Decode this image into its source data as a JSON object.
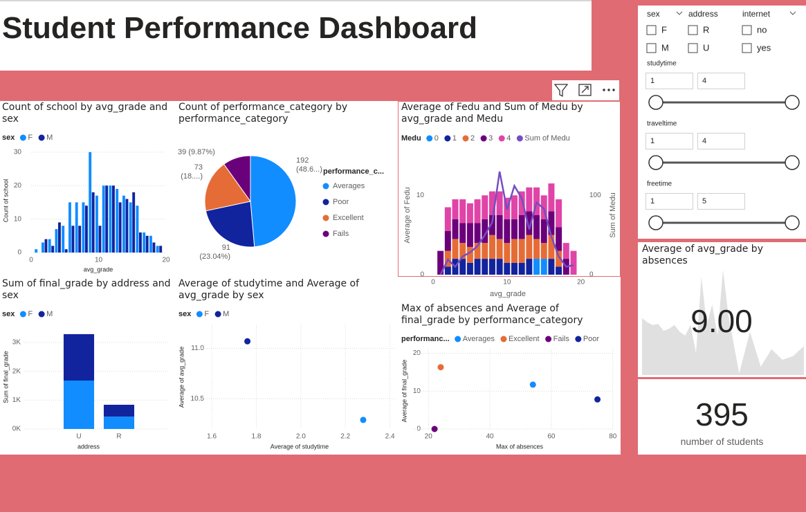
{
  "header": {
    "title": "Student Performance Dashboard"
  },
  "slicers": {
    "checkbox_groups": [
      {
        "title": "sex",
        "options": [
          "F",
          "M"
        ]
      },
      {
        "title": "address",
        "options": [
          "R",
          "U"
        ]
      },
      {
        "title": "internet",
        "options": [
          "no",
          "yes"
        ]
      }
    ],
    "ranges": [
      {
        "title": "studytime",
        "min": 1,
        "max": 4
      },
      {
        "title": "traveltime",
        "min": 1,
        "max": 4
      },
      {
        "title": "freetime",
        "min": 1,
        "max": 5
      }
    ]
  },
  "card": {
    "value": 395,
    "label": "number of students"
  },
  "chart_data": [
    {
      "type": "bar",
      "title": "Count of school by avg_grade and sex",
      "legend_title": "sex",
      "x_label": "avg_grade",
      "y_label": "Count of school",
      "x": [
        1,
        2,
        3,
        4,
        5,
        6,
        7,
        8,
        9,
        10,
        11,
        12,
        13,
        14,
        15,
        16,
        17,
        18,
        19
      ],
      "series": [
        {
          "name": "F",
          "color": "#118DFF",
          "values": [
            1,
            3,
            4,
            7,
            8,
            15,
            15,
            15,
            30,
            17,
            20,
            20,
            19,
            17,
            15,
            14,
            6,
            5,
            2
          ]
        },
        {
          "name": "M",
          "color": "#12239E",
          "values": [
            0,
            4,
            2,
            9,
            1,
            8,
            8,
            14,
            18,
            8,
            20,
            20,
            15,
            16,
            18,
            6,
            5,
            3,
            2
          ]
        }
      ],
      "xlim": [
        0,
        20
      ],
      "xticks": [
        0,
        10,
        20
      ],
      "ylim": [
        0,
        31
      ],
      "yticks": [
        0,
        10,
        20,
        30
      ],
      "grid": true
    },
    {
      "type": "pie",
      "title": "Count of performance_category by performance_category",
      "legend_title": "performance_c...",
      "categories": [
        "Averages",
        "Poor",
        "Excellent",
        "Fails"
      ],
      "values": [
        192,
        91,
        73,
        39
      ],
      "value_labels": [
        "192 (48.6...)",
        "91 (23.04%)",
        "73 (18....)",
        "39 (9.87%)"
      ],
      "colors": [
        "#118DFF",
        "#12239E",
        "#E66C37",
        "#6B007B"
      ]
    },
    {
      "type": "bar_line",
      "title": "Average of Fedu and Sum of Medu by avg_grade and Medu",
      "legend_title": "Medu",
      "x_label": "avg_grade",
      "y_label": "Average of Fedu",
      "y2_label": "Sum of Medu",
      "x": [
        1,
        2,
        3,
        4,
        5,
        6,
        7,
        8,
        9,
        10,
        11,
        12,
        13,
        14,
        15,
        16,
        17,
        18,
        19
      ],
      "series": [
        {
          "name": "0",
          "color": "#118DFF",
          "values": [
            null,
            null,
            null,
            null,
            null,
            null,
            null,
            null,
            null,
            null,
            null,
            null,
            null,
            2,
            2,
            null,
            null,
            null,
            null
          ]
        },
        {
          "name": "1",
          "color": "#12239E",
          "values": [
            null,
            1,
            2,
            2,
            1.5,
            2,
            2,
            2,
            2,
            1.5,
            1.5,
            1.5,
            2,
            null,
            null,
            2,
            1,
            null,
            null
          ]
        },
        {
          "name": "2",
          "color": "#E66C37",
          "values": [
            null,
            2,
            2.5,
            2,
            2,
            2,
            2,
            3,
            2.5,
            2.5,
            3,
            3,
            3,
            2.5,
            2,
            3,
            2,
            null,
            null
          ]
        },
        {
          "name": "3",
          "color": "#6B007B",
          "values": [
            3,
            2.5,
            2.5,
            2.5,
            3,
            2.5,
            3,
            2.5,
            3,
            3,
            2.5,
            3,
            3,
            3,
            3,
            3,
            3,
            2,
            null
          ]
        },
        {
          "name": "4",
          "color": "#E044A7",
          "values": [
            null,
            3,
            2.5,
            3,
            2.5,
            3,
            3,
            3,
            3,
            2.7,
            3,
            3,
            3,
            3.5,
            3,
            3.5,
            3.5,
            2,
            3
          ]
        },
        {
          "name": "Sum of Medu",
          "color": "#744EC2",
          "axis": "y2",
          "values": [
            0,
            19,
            10,
            23,
            28,
            36,
            50,
            66,
            130,
            82,
            112,
            96,
            57,
            91,
            83,
            48,
            23,
            10,
            12
          ]
        }
      ],
      "xlim": [
        0,
        20.5
      ],
      "xticks": [
        0,
        10,
        20
      ],
      "ylim": [
        0,
        15
      ],
      "yticks": [
        0,
        10
      ],
      "y2lim": [
        0,
        150
      ],
      "y2ticks": [
        0,
        100
      ]
    },
    {
      "type": "stacked_bar",
      "title": "Sum of final_grade by address and sex",
      "legend_title": "sex",
      "x_label": "address",
      "y_label": "Sum of final_grade",
      "categories": [
        "U",
        "R"
      ],
      "series": [
        {
          "name": "F",
          "color": "#118DFF",
          "values": [
            1680,
            430
          ]
        },
        {
          "name": "M",
          "color": "#12239E",
          "values": [
            1610,
            410
          ]
        }
      ],
      "ylim": [
        0,
        3600
      ],
      "yticks": [
        {
          "value": 0,
          "label": "0K"
        },
        {
          "value": 1000,
          "label": "1K"
        },
        {
          "value": 2000,
          "label": "2K"
        },
        {
          "value": 3000,
          "label": "3K"
        }
      ],
      "grid": true
    },
    {
      "type": "scatter",
      "title": "Average of studytime and Average of avg_grade by sex",
      "legend_title": "sex",
      "x_label": "Average of studytime",
      "y_label": "Average of avg_grade",
      "series": [
        {
          "name": "F",
          "color": "#118DFF",
          "x": [
            2.28
          ],
          "values": [
            10.29
          ]
        },
        {
          "name": "M",
          "color": "#12239E",
          "x": [
            1.76
          ],
          "values": [
            11.07
          ]
        }
      ],
      "xlim": [
        1.55,
        2.42
      ],
      "xticks": [
        1.6,
        1.8,
        {
          "value": 2,
          "label": "2.0"
        },
        2.2,
        2.4
      ],
      "ylim": [
        10.2,
        11.23
      ],
      "yticks": [
        10.5,
        {
          "value": 11,
          "label": "11.0"
        }
      ],
      "grid": true
    },
    {
      "type": "scatter",
      "title": "Max of absences and Average of final_grade by performance_category",
      "legend_title": "performanc...",
      "x_label": "Max of absences",
      "y_label": "Average of final_grade",
      "series": [
        {
          "name": "Averages",
          "color": "#118DFF",
          "x": [
            54
          ],
          "values": [
            11.7
          ]
        },
        {
          "name": "Excellent",
          "color": "#E66C37",
          "x": [
            24
          ],
          "values": [
            16.3
          ]
        },
        {
          "name": "Fails",
          "color": "#6B007B",
          "x": [
            22
          ],
          "values": [
            0
          ]
        },
        {
          "name": "Poor",
          "color": "#12239E",
          "x": [
            75
          ],
          "values": [
            7.8
          ]
        }
      ],
      "xlim": [
        15,
        80.5
      ],
      "xticks": [
        20,
        40,
        60,
        80
      ],
      "ylim": [
        0,
        21
      ],
      "yticks": [
        0,
        10,
        20
      ],
      "grid": true
    },
    {
      "type": "area",
      "title": "Average of avg_grade by absences",
      "kpi": {
        "value": 9,
        "label": "9.00"
      },
      "color": "#E0E0E0",
      "x": [
        0,
        1,
        2,
        3,
        4,
        5,
        6,
        7,
        8,
        9,
        10,
        11,
        12,
        13,
        14,
        15,
        16,
        18,
        20,
        22,
        24,
        26,
        28,
        30
      ],
      "values": [
        10.8,
        10,
        9.5,
        9.7,
        8.4,
        8.8,
        9.5,
        8.2,
        7.5,
        9.5,
        4.2,
        18.7,
        9.5,
        13.4,
        7.5,
        20,
        11.4,
        0.3,
        8.2,
        1.6,
        4.9,
        2.9,
        3.6,
        5.5
      ]
    }
  ]
}
